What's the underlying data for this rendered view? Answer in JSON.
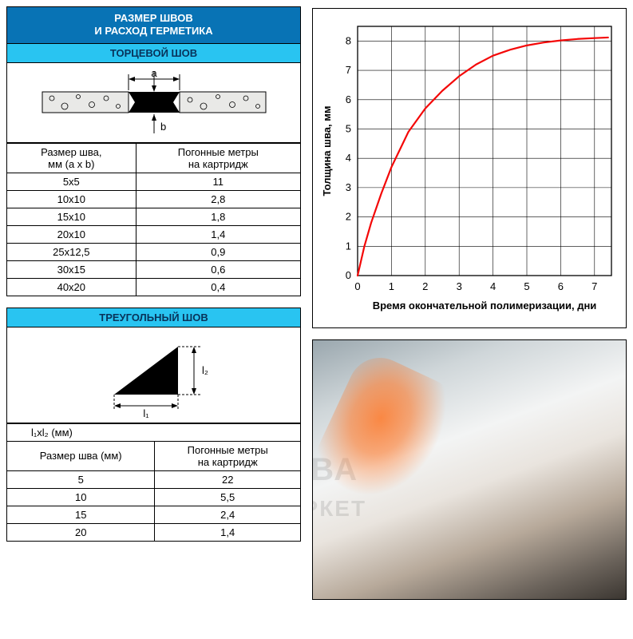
{
  "header": {
    "title_line1": "РАЗМЕР ШВОВ",
    "title_line2": "И РАСХОД ГЕРМЕТИКА",
    "color_bg": "#0873b5",
    "color_fg": "#ffffff"
  },
  "section_end": {
    "title": "ТОРЦЕВОЙ ШОВ",
    "title_bg": "#29c4f1",
    "title_fg": "#08335a",
    "diagram": {
      "label_a": "a",
      "label_b": "b",
      "fill_sealant": "#000000",
      "fill_substrate": "#e9e9e7",
      "stroke": "#000000"
    },
    "table": {
      "col1": "Размер шва,\nмм (a x b)",
      "col2": "Погонные метры\nна картридж",
      "rows": [
        [
          "5x5",
          "11"
        ],
        [
          "10x10",
          "2,8"
        ],
        [
          "15x10",
          "1,8"
        ],
        [
          "20x10",
          "1,4"
        ],
        [
          "25x12,5",
          "0,9"
        ],
        [
          "30x15",
          "0,6"
        ],
        [
          "40x20",
          "0,4"
        ]
      ]
    }
  },
  "section_tri": {
    "title": "ТРЕУГОЛЬНЫЙ ШОВ",
    "diagram": {
      "label_l1": "l₁",
      "label_l2": "l₂",
      "fill": "#000000"
    },
    "sublabel": "l₁xl₂ (мм)",
    "table": {
      "col1": "Размер шва (мм)",
      "col2": "Погонные метры\nна картридж",
      "rows": [
        [
          "5",
          "22"
        ],
        [
          "10",
          "5,5"
        ],
        [
          "15",
          "2,4"
        ],
        [
          "20",
          "1,4"
        ]
      ]
    }
  },
  "chart": {
    "type": "line",
    "xlabel": "Время окончательной полимеризации, дни",
    "ylabel": "Толщина шва, мм",
    "xlim": [
      0,
      7.5
    ],
    "ylim": [
      0,
      8.5
    ],
    "xtick_step": 1,
    "ytick_step": 1,
    "xticks": [
      0,
      1,
      2,
      3,
      4,
      5,
      6,
      7
    ],
    "yticks": [
      0,
      1,
      2,
      3,
      4,
      5,
      6,
      7,
      8
    ],
    "grid_color": "#000000",
    "grid_width": 0.6,
    "background_color": "#ffffff",
    "axis_fontsize": 13,
    "label_fontsize": 13,
    "line": {
      "color": "#f40707",
      "width": 2.2,
      "points": [
        [
          0.0,
          0.0
        ],
        [
          0.2,
          1.0
        ],
        [
          0.4,
          1.8
        ],
        [
          0.7,
          2.8
        ],
        [
          1.0,
          3.7
        ],
        [
          1.5,
          4.9
        ],
        [
          2.0,
          5.7
        ],
        [
          2.5,
          6.3
        ],
        [
          3.0,
          6.8
        ],
        [
          3.5,
          7.2
        ],
        [
          4.0,
          7.5
        ],
        [
          4.5,
          7.7
        ],
        [
          5.0,
          7.85
        ],
        [
          5.5,
          7.95
        ],
        [
          6.0,
          8.02
        ],
        [
          6.5,
          8.07
        ],
        [
          7.0,
          8.1
        ],
        [
          7.4,
          8.12
        ]
      ]
    }
  },
  "watermark": {
    "text1": "АКВА",
    "text2": "МАРКЕТ"
  }
}
